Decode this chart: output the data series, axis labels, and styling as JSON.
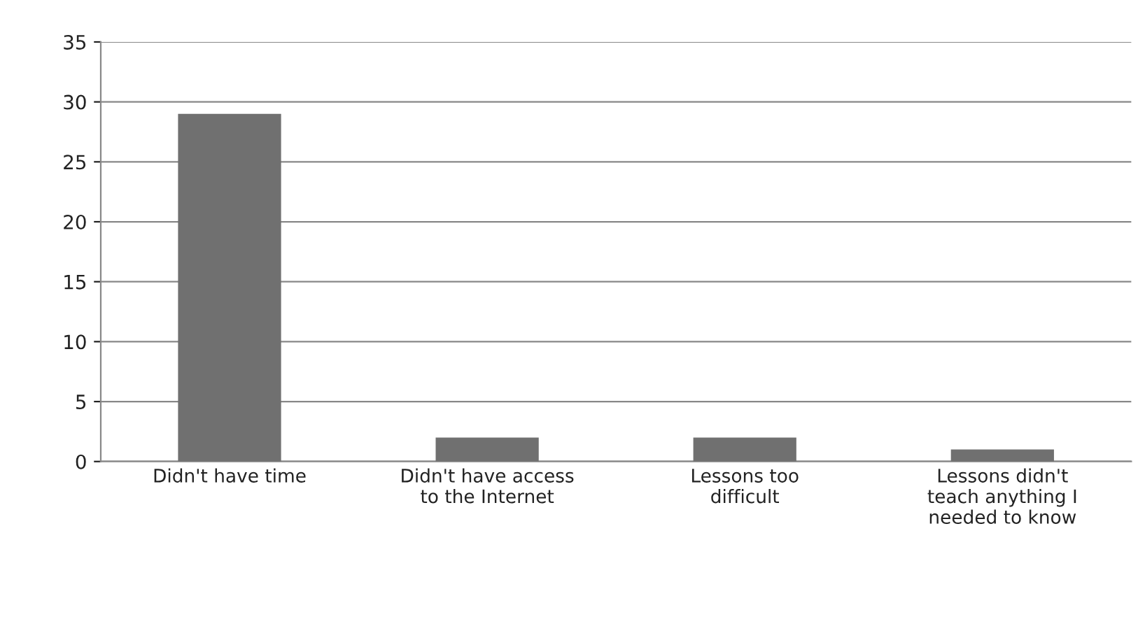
{
  "chart_data": {
    "type": "bar",
    "categories": [
      "Didn't have time",
      "Didn't have access\nto the Internet",
      "Lessons too\ndifficult",
      "Lessons didn't\nteach anything I\nneeded to know"
    ],
    "values": [
      29,
      2,
      2,
      1
    ],
    "color": "#707070",
    "ylim": [
      0,
      35
    ],
    "yticks": [
      0,
      5,
      10,
      15,
      20,
      25,
      30,
      35
    ],
    "grid": "y",
    "legend": false
  }
}
